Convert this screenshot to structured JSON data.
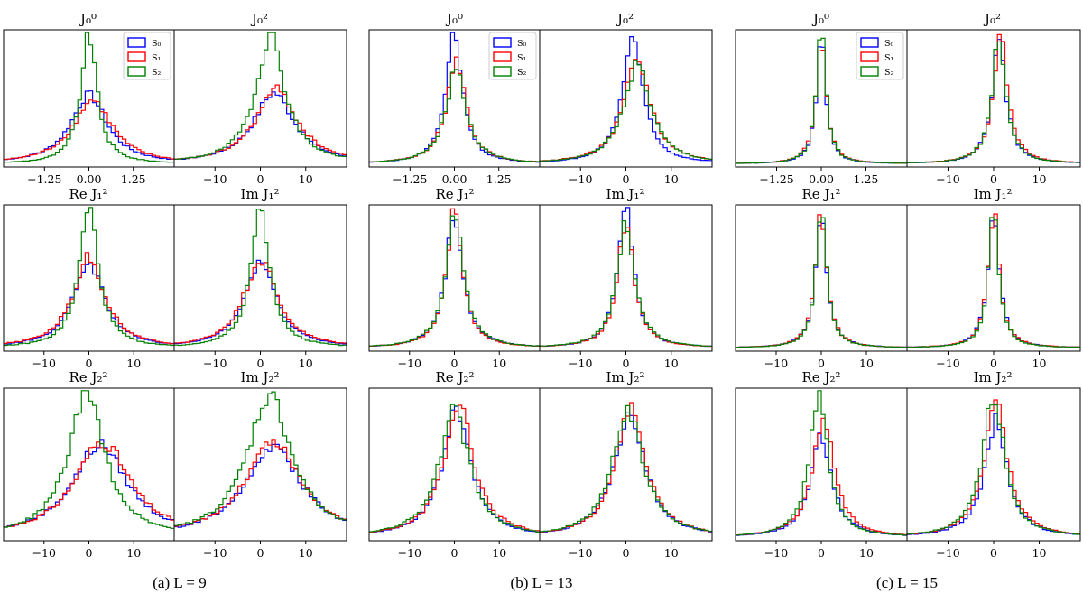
{
  "legend": [
    {
      "label": "S₀",
      "color": "#0000ff"
    },
    {
      "label": "S₁",
      "color": "#ff0000"
    },
    {
      "label": "S₂",
      "color": "#008000"
    }
  ],
  "captions": [
    "(a) L = 9",
    "(b) L = 13",
    "(c) L = 15"
  ],
  "chart_data": {
    "type": "histogram",
    "series_names": [
      "S₀",
      "S₁",
      "S₂"
    ],
    "panel_rows": [
      {
        "titles": [
          "J₀⁰",
          "J₀²"
        ],
        "x_ticks": [
          [
            "−1.25",
            "0.00",
            "1.25"
          ],
          [
            "−10",
            "0",
            "10"
          ]
        ],
        "x_tick_values": [
          [
            -1.25,
            0,
            1.25
          ],
          [
            -10,
            0,
            10
          ]
        ],
        "x_range": [
          [
            -2.4,
            2.4
          ],
          [
            -19,
            19
          ]
        ]
      },
      {
        "titles": [
          "Re J₁²",
          "Im J₁²"
        ],
        "x_ticks": [
          [
            "−10",
            "0",
            "10"
          ],
          [
            "−10",
            "0",
            "10"
          ]
        ],
        "x_tick_values": [
          [
            -10,
            0,
            10
          ],
          [
            -10,
            0,
            10
          ]
        ],
        "x_range": [
          [
            -19,
            19
          ],
          [
            -19,
            19
          ]
        ]
      },
      {
        "titles": [
          "Re J₂²",
          "Im J₂²"
        ],
        "x_ticks": [
          [
            "−10",
            "0",
            "10"
          ],
          [
            "−10",
            "0",
            "10"
          ]
        ],
        "x_tick_values": [
          [
            -10,
            0,
            10
          ],
          [
            -10,
            0,
            10
          ]
        ],
        "x_range": [
          [
            -19,
            19
          ],
          [
            -19,
            19
          ]
        ]
      }
    ],
    "columns": [
      {
        "caption": "(a) L = 9",
        "panels": [
          [
            {
              "center": [
                0.0,
                0.1,
                0.0
              ],
              "width": [
                0.62,
                0.68,
                0.27
              ],
              "peak": [
                0.53,
                0.49,
                1.0
              ]
            },
            {
              "center": [
                3.0,
                3.5,
                2.2
              ],
              "width": [
                5.5,
                5.6,
                3.9
              ],
              "peak": [
                0.55,
                0.57,
                0.99
              ]
            }
          ],
          [
            {
              "center": [
                0,
                0,
                0
              ],
              "width": [
                4.2,
                4.3,
                2.6
              ],
              "peak": [
                0.61,
                0.65,
                1.0
              ]
            },
            {
              "center": [
                0,
                0,
                0
              ],
              "width": [
                4.2,
                4.4,
                2.6
              ],
              "peak": [
                0.62,
                0.64,
                0.99
              ]
            }
          ],
          [
            {
              "center": [
                2.5,
                3.0,
                -0.5
              ],
              "width": [
                7.5,
                7.5,
                5.0
              ],
              "peak": [
                0.64,
                0.66,
                0.98
              ]
            },
            {
              "center": [
                2.8,
                2.8,
                2.0
              ],
              "width": [
                7.5,
                7.5,
                6.0
              ],
              "peak": [
                0.64,
                0.66,
                0.98
              ]
            }
          ]
        ]
      },
      {
        "caption": "(b) L = 13",
        "panels": [
          [
            {
              "center": [
                0.0,
                0.05,
                0.05
              ],
              "width": [
                0.28,
                0.34,
                0.35
              ],
              "peak": [
                1.0,
                0.77,
                0.72
              ]
            },
            {
              "center": [
                1.5,
                2.5,
                2.5
              ],
              "width": [
                2.7,
                3.6,
                3.6
              ],
              "peak": [
                1.0,
                0.8,
                0.76
              ]
            }
          ],
          [
            {
              "center": [
                0,
                0,
                0
              ],
              "width": [
                2.3,
                2.2,
                2.3
              ],
              "peak": [
                0.96,
                0.98,
                0.99
              ]
            },
            {
              "center": [
                0,
                0,
                0
              ],
              "width": [
                2.1,
                2.2,
                2.3
              ],
              "peak": [
                1.0,
                0.9,
                0.92
              ]
            }
          ],
          [
            {
              "center": [
                0.5,
                1.0,
                0
              ],
              "width": [
                3.8,
                4.0,
                4.1
              ],
              "peak": [
                0.88,
                0.92,
                0.87
              ]
            },
            {
              "center": [
                0.8,
                1.0,
                0.5
              ],
              "width": [
                4.0,
                4.0,
                4.1
              ],
              "peak": [
                0.86,
                0.9,
                0.88
              ]
            }
          ]
        ]
      },
      {
        "caption": "(c) L = 15",
        "panels": [
          [
            {
              "center": [
                0,
                0,
                0
              ],
              "width": [
                0.16,
                0.17,
                0.16
              ],
              "peak": [
                0.95,
                0.97,
                1.0
              ]
            },
            {
              "center": [
                1.2,
                1.5,
                1.2
              ],
              "width": [
                1.8,
                1.9,
                1.8
              ],
              "peak": [
                0.97,
                0.98,
                1.0
              ]
            }
          ],
          [
            {
              "center": [
                0,
                0,
                0
              ],
              "width": [
                1.5,
                1.5,
                1.4
              ],
              "peak": [
                0.97,
                0.98,
                1.0
              ]
            },
            {
              "center": [
                0,
                0,
                0
              ],
              "width": [
                1.5,
                1.5,
                1.4
              ],
              "peak": [
                0.97,
                0.98,
                1.0
              ]
            }
          ],
          [
            {
              "center": [
                0,
                0.5,
                -0.5
              ],
              "width": [
                2.8,
                2.9,
                2.4
              ],
              "peak": [
                0.7,
                0.8,
                1.0
              ]
            },
            {
              "center": [
                0.5,
                0.5,
                0
              ],
              "width": [
                3.0,
                3.0,
                2.9
              ],
              "peak": [
                0.8,
                0.94,
                0.98
              ]
            }
          ]
        ]
      }
    ]
  }
}
